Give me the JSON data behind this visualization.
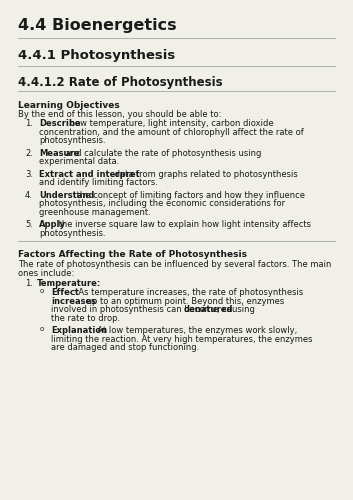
{
  "bg_color": "#f0efe8",
  "text_color": "#1a1a1a",
  "line_color": "#b0b0b0",
  "h1": "4.4 Bioenergetics",
  "h2": "4.4.1 Photosynthesis",
  "h3": "4.4.1.2 Rate of Photosynthesis",
  "section1_title": "Learning Objectives",
  "section1_intro": "By the end of this lesson, you should be able to:",
  "objectives": [
    [
      "Describe",
      " how temperature, light intensity, carbon dioxide\nconcentration, and the amount of chlorophyll affect the rate of\nphotosynthesis."
    ],
    [
      "Measure",
      " and calculate the rate of photosynthesis using\nexperimental data."
    ],
    [
      "Extract and interpret",
      " data from graphs related to photosynthesis\nand identify limiting factors."
    ],
    [
      "Understand",
      " the concept of limiting factors and how they influence\nphotosynthesis, including the economic considerations for\ngreenhouse management."
    ],
    [
      "Apply",
      " the inverse square law to explain how light intensity affects\nphotosynthesis."
    ]
  ],
  "section2_title": "Factors Affecting the Rate of Photosynthesis",
  "section2_intro": "The rate of photosynthesis can be influenced by several factors. The main\nones include:",
  "factors": [
    {
      "name": "Temperature",
      "sub": [
        {
          "label": "Effect",
          "parts": [
            [
              "normal",
              ": As temperature increases, the rate of photosynthesis\n"
            ],
            [
              "bold",
              "increases"
            ],
            [
              "normal",
              " up to an optimum point. Beyond this, enzymes\ninvolved in photosynthesis can become "
            ],
            [
              "bold",
              "denatured"
            ],
            [
              "normal",
              ", causing\nthe rate to drop."
            ]
          ]
        },
        {
          "label": "Explanation",
          "parts": [
            [
              "normal",
              ": At low temperatures, the enzymes work slowly,\nlimiting the reaction. At very high temperatures, the enzymes\nare damaged and stop functioning."
            ]
          ]
        }
      ]
    }
  ]
}
